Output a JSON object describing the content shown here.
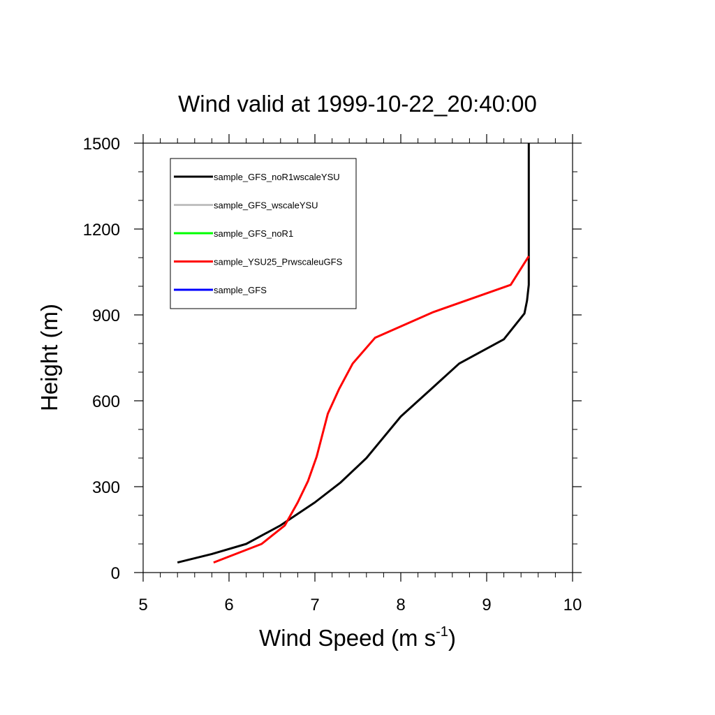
{
  "chart_data": {
    "type": "line",
    "title": "Wind valid at 1999-10-22_20:40:00",
    "xlabel": "Wind Speed (m s",
    "xlabel_sup": "-1",
    "xlabel_end": ")",
    "ylabel": "Height (m)",
    "xlim": [
      5,
      10
    ],
    "ylim": [
      0,
      1500
    ],
    "x_ticks": [
      "5",
      "6",
      "7",
      "8",
      "9",
      "10"
    ],
    "y_ticks": [
      "0",
      "300",
      "600",
      "900",
      "1200",
      "1500"
    ],
    "legend_placement": "top-left",
    "series": [
      {
        "name": "sample_GFS_noR1wscaleYSU",
        "color": "#000000",
        "points": [
          [
            5.4,
            35
          ],
          [
            5.8,
            65
          ],
          [
            6.2,
            100
          ],
          [
            6.6,
            165
          ],
          [
            7.0,
            245
          ],
          [
            7.3,
            315
          ],
          [
            7.6,
            400
          ],
          [
            8.0,
            545
          ],
          [
            8.35,
            640
          ],
          [
            8.68,
            730
          ],
          [
            9.2,
            815
          ],
          [
            9.44,
            905
          ],
          [
            9.47,
            950
          ],
          [
            9.49,
            1005
          ],
          [
            9.49,
            1100
          ],
          [
            9.49,
            1200
          ],
          [
            9.49,
            1300
          ],
          [
            9.49,
            1400
          ],
          [
            9.49,
            1500
          ]
        ]
      },
      {
        "name": "sample_GFS_wscaleYSU",
        "color": "#c0c0c0",
        "points": []
      },
      {
        "name": "sample_GFS_noR1",
        "color": "#00ff00",
        "points": []
      },
      {
        "name": "sample_YSU25_PrwscaleuGFS",
        "color": "#ff0000",
        "points": [
          [
            5.82,
            35
          ],
          [
            6.38,
            100
          ],
          [
            6.65,
            165
          ],
          [
            6.8,
            245
          ],
          [
            6.92,
            320
          ],
          [
            7.02,
            405
          ],
          [
            7.15,
            555
          ],
          [
            7.28,
            640
          ],
          [
            7.44,
            730
          ],
          [
            7.7,
            820
          ],
          [
            8.38,
            910
          ],
          [
            9.28,
            1005
          ],
          [
            9.49,
            1105
          ]
        ]
      },
      {
        "name": "sample_GFS",
        "color": "#0000ff",
        "points": []
      }
    ]
  }
}
